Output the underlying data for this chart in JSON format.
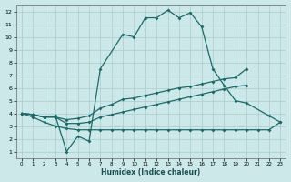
{
  "xlabel": "Humidex (Indice chaleur)",
  "bg_color": "#cce8e8",
  "grid_color": "#aacccc",
  "line_color": "#1a6b6b",
  "xlim": [
    -0.5,
    23.5
  ],
  "ylim": [
    0.5,
    12.5
  ],
  "yticks": [
    1,
    2,
    3,
    4,
    5,
    6,
    7,
    8,
    9,
    10,
    11,
    12
  ],
  "xticks": [
    0,
    1,
    2,
    3,
    4,
    5,
    6,
    7,
    8,
    9,
    10,
    11,
    12,
    13,
    14,
    15,
    16,
    17,
    18,
    19,
    20,
    21,
    22,
    23
  ],
  "line1_x": [
    0,
    1,
    2,
    3,
    4,
    5,
    6,
    7,
    9,
    10,
    11,
    12,
    13,
    14,
    15,
    16,
    17,
    18,
    19,
    20,
    22,
    23
  ],
  "line1_y": [
    4.0,
    3.9,
    3.7,
    3.8,
    1.0,
    2.2,
    1.8,
    7.5,
    10.2,
    10.0,
    11.5,
    11.5,
    12.1,
    11.5,
    11.9,
    10.8,
    7.5,
    6.2,
    5.0,
    4.8,
    3.8,
    3.3
  ],
  "line2_x": [
    0,
    1,
    2,
    3,
    4,
    5,
    6,
    7,
    8,
    9,
    10,
    11,
    12,
    13,
    14,
    15,
    16,
    17,
    18,
    19,
    20
  ],
  "line2_y": [
    4.0,
    3.9,
    3.7,
    3.7,
    3.5,
    3.6,
    3.8,
    4.4,
    4.7,
    5.1,
    5.2,
    5.4,
    5.6,
    5.8,
    6.0,
    6.1,
    6.3,
    6.5,
    6.7,
    6.8,
    7.5
  ],
  "line3_x": [
    0,
    1,
    2,
    3,
    4,
    5,
    6,
    7,
    8,
    9,
    10,
    11,
    12,
    13,
    14,
    15,
    16,
    17,
    18,
    19,
    20
  ],
  "line3_y": [
    4.0,
    3.9,
    3.7,
    3.7,
    3.2,
    3.2,
    3.3,
    3.7,
    3.9,
    4.1,
    4.3,
    4.5,
    4.7,
    4.9,
    5.1,
    5.3,
    5.5,
    5.7,
    5.9,
    6.1,
    6.2
  ],
  "line4_x": [
    0,
    1,
    2,
    3,
    4,
    5,
    6,
    7,
    8,
    9,
    10,
    11,
    12,
    13,
    14,
    15,
    16,
    17,
    18,
    19,
    20,
    21,
    22,
    23
  ],
  "line4_y": [
    4.0,
    3.7,
    3.3,
    3.0,
    2.8,
    2.7,
    2.7,
    2.7,
    2.7,
    2.7,
    2.7,
    2.7,
    2.7,
    2.7,
    2.7,
    2.7,
    2.7,
    2.7,
    2.7,
    2.7,
    2.7,
    2.7,
    2.7,
    3.3
  ]
}
